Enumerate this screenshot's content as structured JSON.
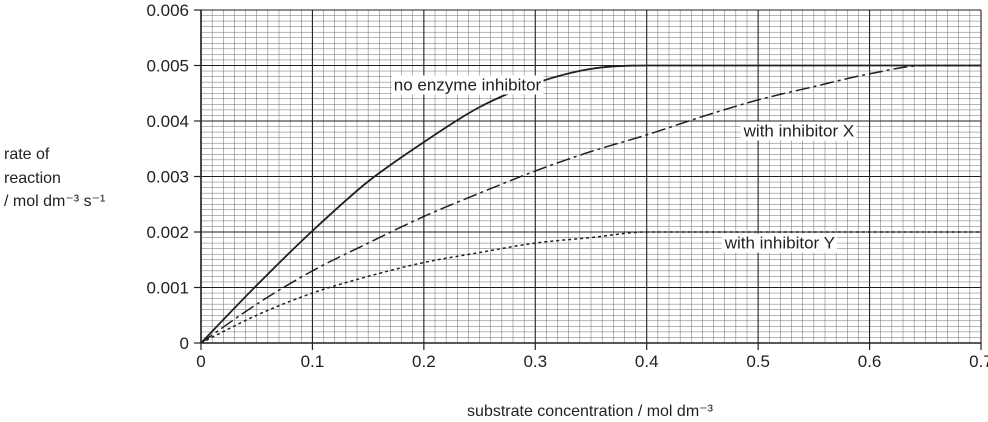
{
  "chart_data": {
    "type": "line",
    "xlabel": "substrate concentration / mol dm⁻³",
    "ylabel": [
      "rate of",
      "reaction",
      "/ mol dm⁻³ s⁻¹"
    ],
    "xlim": [
      0,
      0.7
    ],
    "ylim": [
      0,
      0.006
    ],
    "x_ticks": [
      "0",
      "0.1",
      "0.2",
      "0.3",
      "0.4",
      "0.5",
      "0.6",
      "0.7"
    ],
    "y_ticks": [
      "0",
      "0.001",
      "0.002",
      "0.003",
      "0.004",
      "0.005",
      "0.006"
    ],
    "grid": true,
    "series": [
      {
        "name": "no enzyme inhibitor",
        "line_style": "solid",
        "x": [
          0,
          0.05,
          0.1,
          0.15,
          0.2,
          0.25,
          0.3,
          0.35,
          0.4,
          0.7
        ],
        "y": [
          0,
          0.00104,
          0.00202,
          0.00291,
          0.00362,
          0.00425,
          0.00468,
          0.00494,
          0.005,
          0.005
        ]
      },
      {
        "name": "with inhibitor X",
        "line_style": "dash-dot",
        "x": [
          0,
          0.05,
          0.1,
          0.15,
          0.2,
          0.25,
          0.3,
          0.35,
          0.4,
          0.45,
          0.5,
          0.55,
          0.6,
          0.65,
          0.7
        ],
        "y": [
          0,
          0.0007,
          0.0013,
          0.0018,
          0.00228,
          0.0027,
          0.0031,
          0.00345,
          0.00375,
          0.00408,
          0.00438,
          0.00462,
          0.00485,
          0.005,
          0.005
        ]
      },
      {
        "name": "with inhibitor Y",
        "line_style": "dotted",
        "x": [
          0,
          0.05,
          0.1,
          0.15,
          0.2,
          0.25,
          0.3,
          0.35,
          0.4,
          0.7
        ],
        "y": [
          0,
          0.0005,
          0.0009,
          0.0012,
          0.00145,
          0.00163,
          0.0018,
          0.0019,
          0.002,
          0.002
        ]
      }
    ],
    "annotations": [
      {
        "text": "no enzyme inhibitor",
        "x": 0.173,
        "y": 0.00455
      },
      {
        "text": "with inhibitor X",
        "x": 0.487,
        "y": 0.00372
      },
      {
        "text": "with inhibitor Y",
        "x": 0.47,
        "y": 0.0017
      }
    ]
  }
}
